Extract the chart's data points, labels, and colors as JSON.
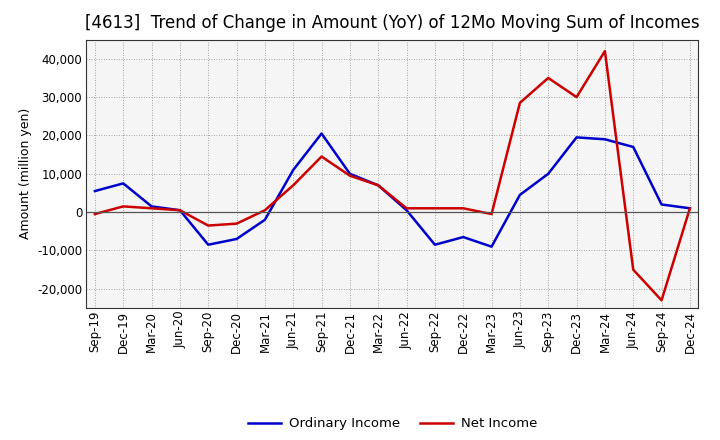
{
  "title": "[4613]  Trend of Change in Amount (YoY) of 12Mo Moving Sum of Incomes",
  "ylabel": "Amount (million yen)",
  "x_labels": [
    "Sep-19",
    "Dec-19",
    "Mar-20",
    "Jun-20",
    "Sep-20",
    "Dec-20",
    "Mar-21",
    "Jun-21",
    "Sep-21",
    "Dec-21",
    "Mar-22",
    "Jun-22",
    "Sep-22",
    "Dec-22",
    "Mar-23",
    "Jun-23",
    "Sep-23",
    "Dec-23",
    "Mar-24",
    "Jun-24",
    "Sep-24",
    "Dec-24"
  ],
  "ordinary_income": [
    5500,
    7500,
    1500,
    500,
    -8500,
    -7000,
    -2000,
    11000,
    20500,
    10000,
    7000,
    500,
    -8500,
    -6500,
    -9000,
    4500,
    10000,
    19500,
    19000,
    17000,
    2000,
    1000
  ],
  "net_income": [
    -500,
    1500,
    1000,
    500,
    -3500,
    -3000,
    500,
    7000,
    14500,
    9500,
    7000,
    1000,
    1000,
    1000,
    -500,
    28500,
    35000,
    30000,
    42000,
    -15000,
    -23000,
    1000
  ],
  "ordinary_color": "#0000cc",
  "net_color": "#cc0000",
  "line_width": 1.8,
  "ylim": [
    -25000,
    45000
  ],
  "yticks": [
    -20000,
    -10000,
    0,
    10000,
    20000,
    30000,
    40000
  ],
  "grid_color": "#888888",
  "bg_color": "#ffffff",
  "plot_bg_color": "#f5f5f5",
  "legend_ordinary": "Ordinary Income",
  "legend_net": "Net Income",
  "title_fontsize": 12,
  "axis_fontsize": 9,
  "tick_fontsize": 8.5
}
